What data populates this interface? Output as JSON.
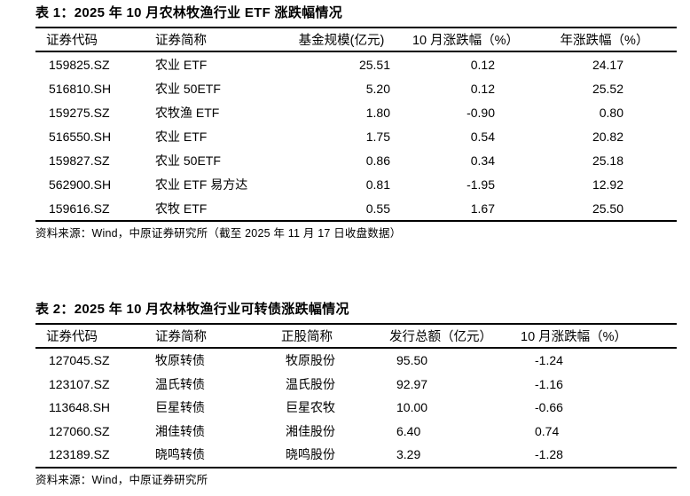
{
  "page": {
    "background_color": "#ffffff",
    "text_color": "#000000",
    "rule_color": "#000000"
  },
  "table1": {
    "title": "表 1：2025 年 10 月农林牧渔行业 ETF 涨跌幅情况",
    "columns": [
      "证券代码",
      "证券简称",
      "基金规模(亿元)",
      "10 月涨跌幅（%）",
      "年涨跌幅（%）"
    ],
    "rows": [
      [
        "159825.SZ",
        "农业 ETF",
        "25.51",
        "0.12",
        "24.17"
      ],
      [
        "516810.SH",
        "农业 50ETF",
        "5.20",
        "0.12",
        "25.52"
      ],
      [
        "159275.SZ",
        "农牧渔 ETF",
        "1.80",
        "-0.90",
        "0.80"
      ],
      [
        "516550.SH",
        "农业 ETF",
        "1.75",
        "0.54",
        "20.82"
      ],
      [
        "159827.SZ",
        "农业 50ETF",
        "0.86",
        "0.34",
        "25.18"
      ],
      [
        "562900.SH",
        "农业 ETF 易方达",
        "0.81",
        "-1.95",
        "12.92"
      ],
      [
        "159616.SZ",
        "农牧 ETF",
        "0.55",
        "1.67",
        "25.50"
      ]
    ],
    "source": "资料来源：Wind，中原证券研究所（截至 2025 年 11 月 17 日收盘数据）"
  },
  "table2": {
    "title": "表 2：2025 年 10 月农林牧渔行业可转债涨跌幅情况",
    "columns": [
      "证券代码",
      "证券简称",
      "正股简称",
      "发行总额（亿元）",
      "10 月涨跌幅（%）"
    ],
    "rows": [
      [
        "127045.SZ",
        "牧原转债",
        "牧原股份",
        "95.50",
        "-1.24"
      ],
      [
        "123107.SZ",
        "温氏转债",
        "温氏股份",
        "92.97",
        "-1.16"
      ],
      [
        "113648.SH",
        "巨星转债",
        "巨星农牧",
        "10.00",
        "-0.66"
      ],
      [
        "127060.SZ",
        "湘佳转债",
        "湘佳股份",
        "6.40",
        "0.74"
      ],
      [
        "123189.SZ",
        "晓鸣转债",
        "晓鸣股份",
        "3.29",
        "-1.28"
      ]
    ],
    "source": "资料来源：Wind，中原证券研究所"
  }
}
